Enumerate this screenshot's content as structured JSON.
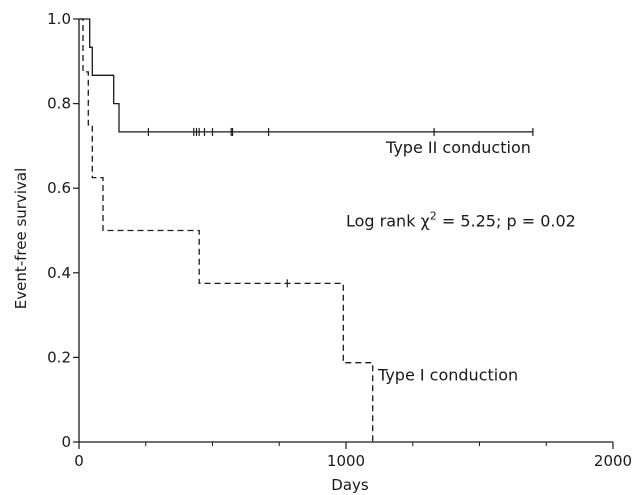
{
  "chart_data": {
    "type": "line",
    "subtype": "kaplan-meier step survival curves",
    "title": "",
    "xlabel": "Days",
    "ylabel": "Event-free survival",
    "xlim": [
      0,
      2000
    ],
    "ylim": [
      0,
      1.0
    ],
    "x_ticks": [
      0,
      1000,
      2000
    ],
    "x_tick_labels": [
      "0",
      "1000",
      "2000"
    ],
    "x_minor_ticks": [
      250,
      500,
      750,
      1250,
      1500,
      1750
    ],
    "y_ticks": [
      0,
      0.2,
      0.4,
      0.6,
      0.8,
      1.0
    ],
    "y_tick_labels": [
      "0",
      "0.2",
      "0.4",
      "0.6",
      "0.8",
      "1.0"
    ],
    "grid": false,
    "legend": "none",
    "series": [
      {
        "name": "Type II conduction",
        "style": "solid",
        "color": "#1a1a1a",
        "steps": [
          [
            0,
            1.0
          ],
          [
            40,
            1.0
          ],
          [
            40,
            0.933
          ],
          [
            50,
            0.933
          ],
          [
            50,
            0.867
          ],
          [
            130,
            0.867
          ],
          [
            130,
            0.8
          ],
          [
            150,
            0.8
          ],
          [
            150,
            0.733
          ],
          [
            1700,
            0.733
          ]
        ],
        "censor_x": [
          260,
          430,
          440,
          450,
          470,
          500,
          570,
          575,
          710,
          1330,
          1700
        ]
      },
      {
        "name": "Type I conduction",
        "style": "dashed",
        "color": "#1a1a1a",
        "steps": [
          [
            0,
            1.0
          ],
          [
            15,
            1.0
          ],
          [
            15,
            0.875
          ],
          [
            35,
            0.875
          ],
          [
            35,
            0.75
          ],
          [
            50,
            0.75
          ],
          [
            50,
            0.625
          ],
          [
            90,
            0.625
          ],
          [
            90,
            0.5
          ],
          [
            450,
            0.5
          ],
          [
            450,
            0.375
          ],
          [
            990,
            0.375
          ],
          [
            990,
            0.1875
          ],
          [
            1100,
            0.1875
          ],
          [
            1100,
            0.0
          ]
        ],
        "censor_x": [
          780
        ]
      }
    ],
    "annotations": [
      {
        "text": "Type II conduction",
        "x": 1150,
        "y": 0.683
      },
      {
        "text": "Log rank",
        "chi": "χ",
        "sup": "2",
        "rest": " = 5.25; p = 0.02",
        "x": 1000,
        "y": 0.51
      },
      {
        "text": "Type I conduction",
        "x": 1120,
        "y": 0.145
      }
    ]
  }
}
